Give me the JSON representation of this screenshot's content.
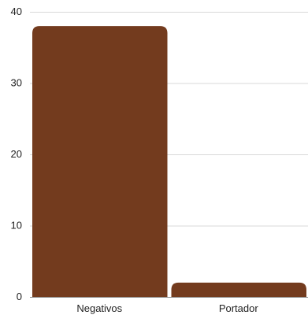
{
  "chart_data": {
    "type": "bar",
    "categories": [
      "Negativos",
      "Portador"
    ],
    "values": [
      38,
      2
    ],
    "title": "",
    "xlabel": "",
    "ylabel": "",
    "ylim": [
      0,
      40
    ],
    "yticks": [
      0,
      10,
      20,
      30,
      40
    ],
    "grid": true,
    "legend": "none",
    "bar_color": "#733b1e",
    "grid_color": "#d9d9d9",
    "axis_color": "#888888"
  }
}
